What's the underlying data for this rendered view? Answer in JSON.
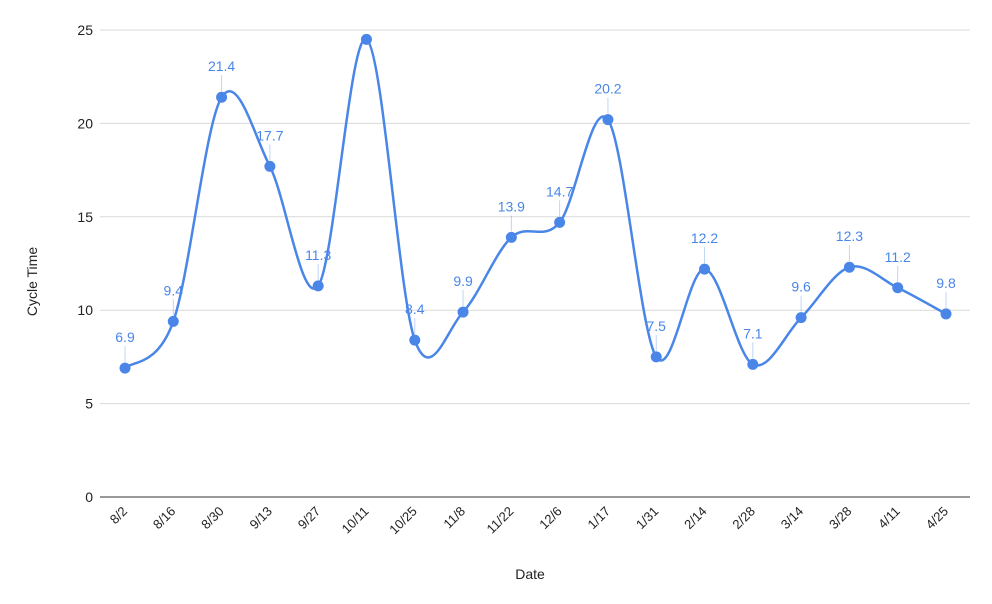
{
  "chart_data": {
    "type": "line",
    "title": "",
    "xlabel": "Date",
    "ylabel": "Cycle Time",
    "ylim": [
      0,
      25
    ],
    "yticks": [
      0,
      5,
      10,
      15,
      20,
      25
    ],
    "ytick_labels": [
      "0",
      "5",
      "10",
      "15",
      "20",
      "25"
    ],
    "grid": true,
    "smooth": true,
    "legend": "none",
    "color": "#4a86e8",
    "categories": [
      "8/2",
      "8/16",
      "8/30",
      "9/13",
      "9/27",
      "10/11",
      "10/25",
      "11/8",
      "11/22",
      "12/6",
      "1/17",
      "1/31",
      "2/14",
      "2/28",
      "3/14",
      "3/28",
      "4/11",
      "4/25"
    ],
    "values": [
      6.9,
      9.4,
      21.4,
      17.7,
      11.3,
      24.5,
      8.4,
      9.9,
      13.9,
      14.7,
      20.2,
      7.5,
      12.2,
      7.1,
      9.6,
      12.3,
      11.2,
      9.8
    ],
    "data_labels": [
      "6.9",
      "9.4",
      "21.4",
      "17.7",
      "11.3",
      "",
      "8.4",
      "9.9",
      "13.9",
      "14.7",
      "20.2",
      "7.5",
      "12.2",
      "7.1",
      "9.6",
      "12.3",
      "11.2",
      "9.8"
    ]
  }
}
